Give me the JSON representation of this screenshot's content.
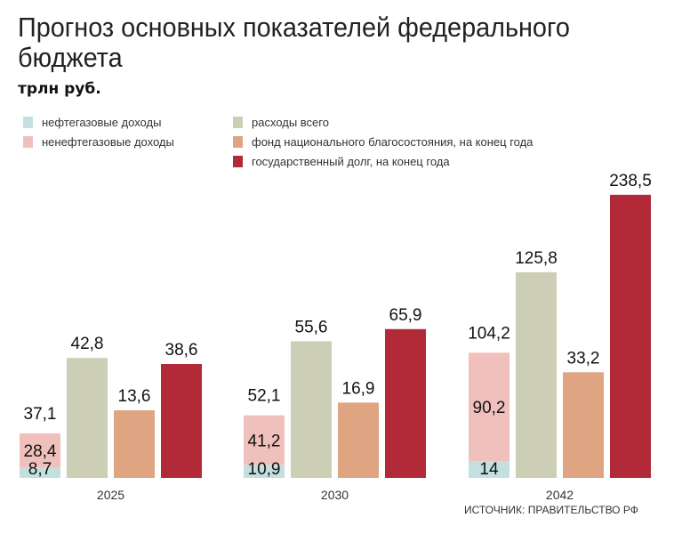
{
  "title": "Прогноз основных показателей федерального бюджета",
  "unit": "трлн руб.",
  "source": "ИСТОЧНИК: ПРАВИТЕЛЬСТВО РФ",
  "chart_data": {
    "type": "bar",
    "categories": [
      "2025",
      "2030",
      "2042"
    ],
    "legend_placement": "top",
    "grid": false,
    "series": [
      {
        "name": "нефтегазовые доходы",
        "color": "#c3dfdf",
        "values": [
          8.7,
          10.9,
          14
        ],
        "stack": "income"
      },
      {
        "name": "ненефтегазовые доходы",
        "color": "#efc0bc",
        "values": [
          28.4,
          41.2,
          90.2
        ],
        "stack": "income"
      },
      {
        "name": "расходы всего",
        "color": "#ccceb5",
        "values": [
          42.8,
          55.6,
          125.8
        ]
      },
      {
        "name": "фонд национального благосостояния, на конец года",
        "color": "#dfa582",
        "values": [
          13.6,
          16.9,
          33.2
        ]
      },
      {
        "name": "государственный долг, на конец года",
        "color": "#b22a37",
        "values": [
          38.6,
          65.9,
          238.5
        ]
      }
    ],
    "income_totals": [
      37.1,
      52.1,
      104.2
    ],
    "totals_label": [
      "37,1",
      "52,1",
      "104,2"
    ]
  }
}
